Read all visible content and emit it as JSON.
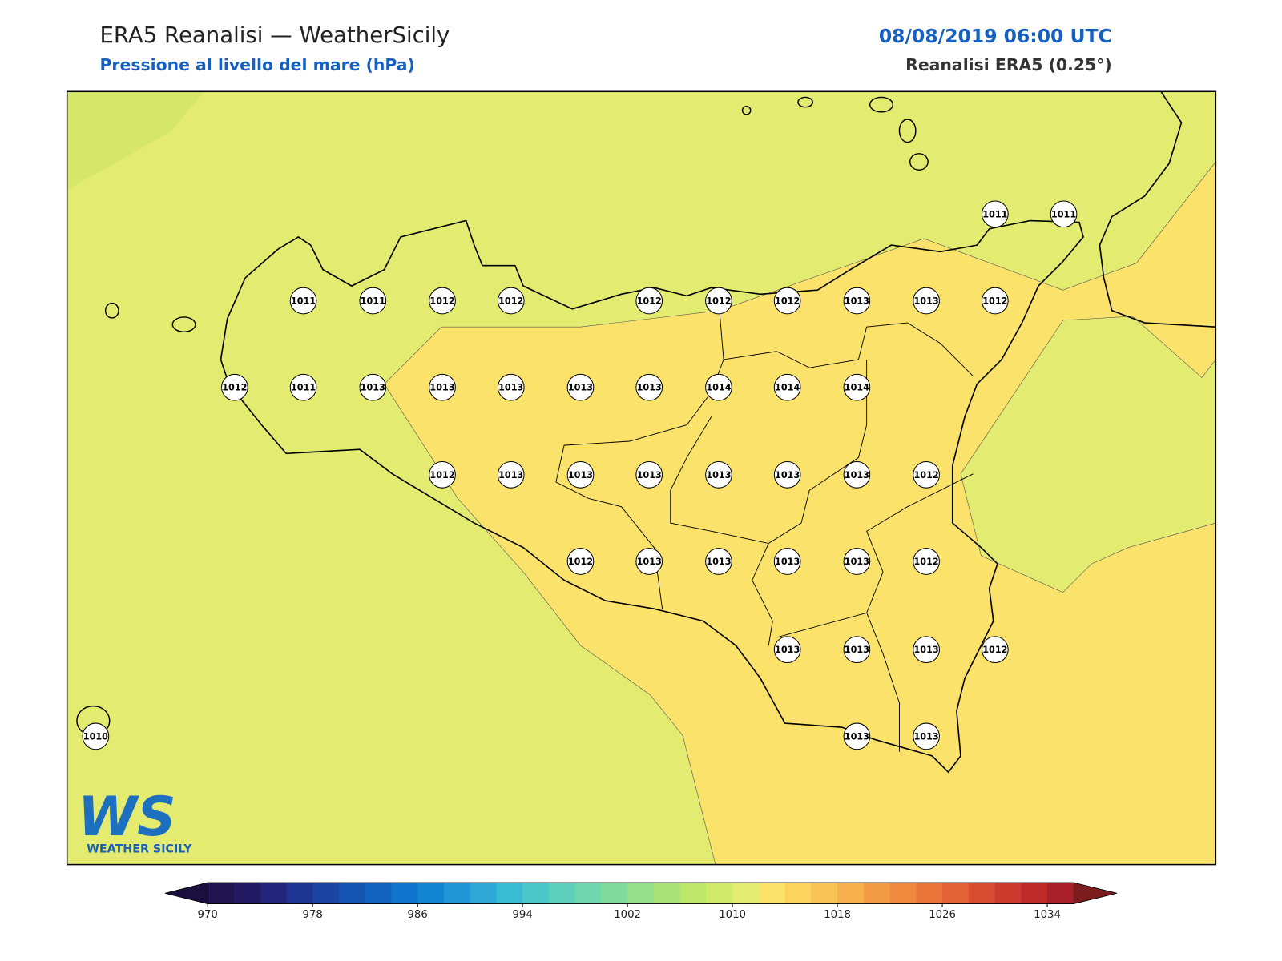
{
  "header": {
    "title": "ERA5 Reanalisi — WeatherSicily",
    "subtitle": "Pressione al livello del mare (hPa)",
    "datetime": "08/08/2019 06:00 UTC",
    "source": "Reanalisi ERA5 (0.25°)"
  },
  "map": {
    "stations": [
      1011,
      1011,
      1011,
      1012,
      1012,
      1012,
      1012,
      1012,
      1013,
      1013,
      1012,
      1011,
      1011,
      1012,
      1013,
      1013,
      1013,
      1013,
      1013,
      1014,
      1014,
      1014,
      1012,
      1013,
      1013,
      1013,
      1013,
      1013,
      1013,
      1012,
      1012,
      1013,
      1013,
      1013,
      1013,
      1012,
      1013,
      1013,
      1013,
      1012,
      1010,
      1013,
      1013
    ],
    "fill_colors": {
      "sea_low": "#d5e669",
      "base": "#e3ec70",
      "high": "#fbe36b"
    }
  },
  "logo": {
    "mark": "WS",
    "name": "WEATHER SICILY"
  },
  "colorbar": {
    "clim": [
      970,
      1036
    ],
    "ticks": [
      970,
      978,
      986,
      994,
      1002,
      1010,
      1018,
      1026,
      1034
    ],
    "colors": [
      "#201550",
      "#241a63",
      "#22257a",
      "#1d3590",
      "#1b44a0",
      "#1553b0",
      "#1262c0",
      "#0f75cc",
      "#1385d2",
      "#2096d6",
      "#2fa8d8",
      "#3bbcd5",
      "#4cc7c9",
      "#5dcfbb",
      "#6fd6ad",
      "#82da9c",
      "#96de89",
      "#aae278",
      "#bee66a",
      "#d2ea6a",
      "#e3ec70",
      "#fbe36b",
      "#fcd35e",
      "#f9c355",
      "#f6b04e",
      "#f29c45",
      "#ee893e",
      "#e97539",
      "#e26135",
      "#d84c31",
      "#cc392d",
      "#bd2a2a",
      "#a8202a"
    ],
    "extend_colors": [
      "#1a0f3e",
      "#7d1c1e"
    ]
  }
}
